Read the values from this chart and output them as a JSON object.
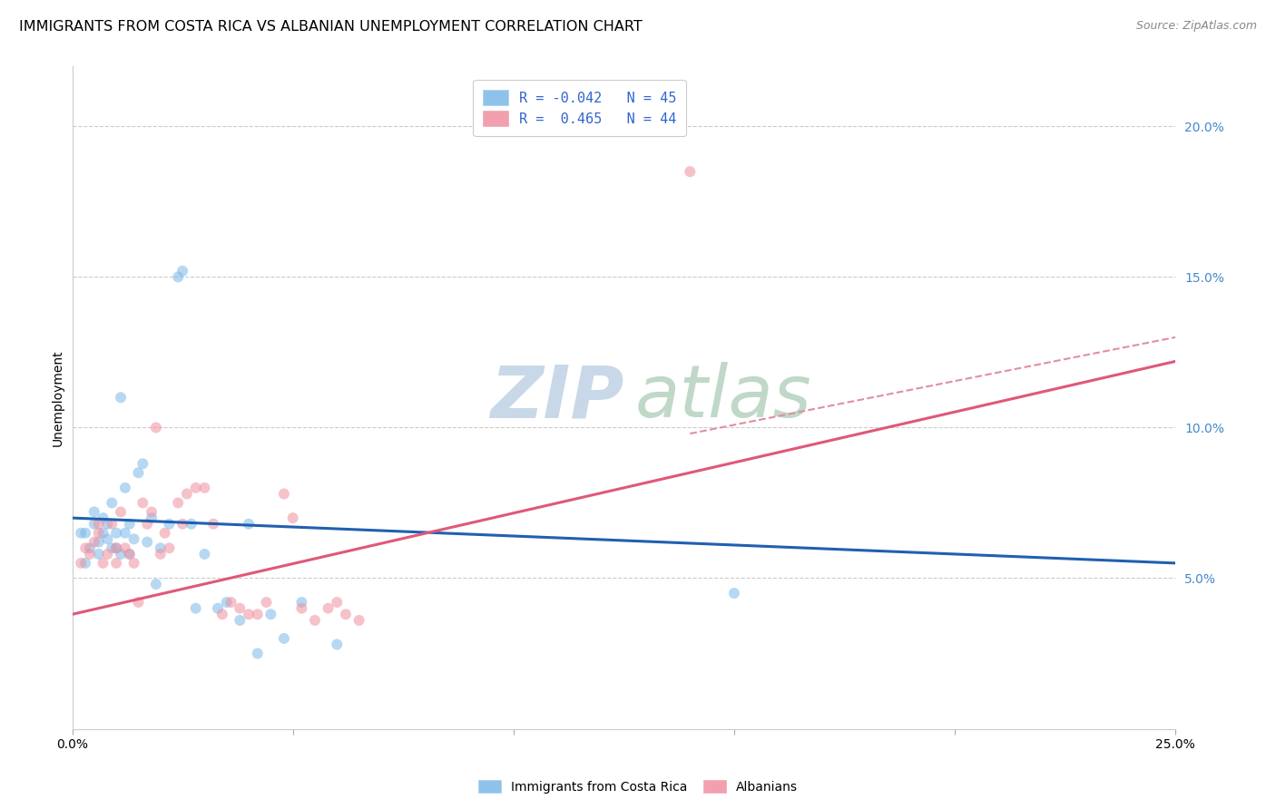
{
  "title": "IMMIGRANTS FROM COSTA RICA VS ALBANIAN UNEMPLOYMENT CORRELATION CHART",
  "source": "Source: ZipAtlas.com",
  "ylabel": "Unemployment",
  "xlim": [
    0.0,
    0.25
  ],
  "ylim": [
    0.0,
    0.22
  ],
  "yticks": [
    0.05,
    0.1,
    0.15,
    0.2
  ],
  "ytick_labels": [
    "5.0%",
    "10.0%",
    "15.0%",
    "20.0%"
  ],
  "xticks": [
    0.0,
    0.05,
    0.1,
    0.15,
    0.2,
    0.25
  ],
  "xtick_labels": [
    "0.0%",
    "",
    "",
    "",
    "",
    "25.0%"
  ],
  "legend_label_blue": "R = -0.042   N = 45",
  "legend_label_pink": "R =  0.465   N = 44",
  "blue_scatter_x": [
    0.002,
    0.003,
    0.004,
    0.005,
    0.005,
    0.006,
    0.006,
    0.007,
    0.007,
    0.008,
    0.008,
    0.009,
    0.009,
    0.01,
    0.01,
    0.011,
    0.011,
    0.012,
    0.012,
    0.013,
    0.013,
    0.014,
    0.015,
    0.016,
    0.017,
    0.018,
    0.019,
    0.02,
    0.022,
    0.024,
    0.025,
    0.027,
    0.028,
    0.03,
    0.033,
    0.035,
    0.038,
    0.04,
    0.042,
    0.045,
    0.048,
    0.052,
    0.06,
    0.15,
    0.003
  ],
  "blue_scatter_y": [
    0.065,
    0.065,
    0.06,
    0.068,
    0.072,
    0.062,
    0.058,
    0.065,
    0.07,
    0.063,
    0.068,
    0.06,
    0.075,
    0.06,
    0.065,
    0.058,
    0.11,
    0.065,
    0.08,
    0.068,
    0.058,
    0.063,
    0.085,
    0.088,
    0.062,
    0.07,
    0.048,
    0.06,
    0.068,
    0.15,
    0.152,
    0.068,
    0.04,
    0.058,
    0.04,
    0.042,
    0.036,
    0.068,
    0.025,
    0.038,
    0.03,
    0.042,
    0.028,
    0.045,
    0.055
  ],
  "pink_scatter_x": [
    0.002,
    0.003,
    0.004,
    0.005,
    0.006,
    0.006,
    0.007,
    0.008,
    0.009,
    0.01,
    0.01,
    0.011,
    0.012,
    0.013,
    0.014,
    0.015,
    0.016,
    0.017,
    0.018,
    0.019,
    0.02,
    0.021,
    0.022,
    0.024,
    0.025,
    0.026,
    0.028,
    0.03,
    0.032,
    0.034,
    0.036,
    0.038,
    0.04,
    0.042,
    0.044,
    0.048,
    0.05,
    0.052,
    0.055,
    0.058,
    0.06,
    0.062,
    0.065,
    0.14
  ],
  "pink_scatter_y": [
    0.055,
    0.06,
    0.058,
    0.062,
    0.065,
    0.068,
    0.055,
    0.058,
    0.068,
    0.06,
    0.055,
    0.072,
    0.06,
    0.058,
    0.055,
    0.042,
    0.075,
    0.068,
    0.072,
    0.1,
    0.058,
    0.065,
    0.06,
    0.075,
    0.068,
    0.078,
    0.08,
    0.08,
    0.068,
    0.038,
    0.042,
    0.04,
    0.038,
    0.038,
    0.042,
    0.078,
    0.07,
    0.04,
    0.036,
    0.04,
    0.042,
    0.038,
    0.036,
    0.185
  ],
  "blue_line_x": [
    0.0,
    0.25
  ],
  "blue_line_y": [
    0.07,
    0.055
  ],
  "pink_line_x": [
    0.0,
    0.25
  ],
  "pink_line_y": [
    0.038,
    0.122
  ],
  "dashed_line_x": [
    0.14,
    0.25
  ],
  "dashed_line_y": [
    0.098,
    0.13
  ],
  "background_color": "#ffffff",
  "scatter_alpha": 0.55,
  "scatter_size": 75,
  "blue_color": "#7ab8e8",
  "pink_color": "#f090a0",
  "blue_line_color": "#2060b0",
  "pink_line_color": "#e05878",
  "dashed_line_color": "#e090a0",
  "grid_color": "#cccccc",
  "ytick_color": "#4488cc",
  "title_fontsize": 11.5,
  "axis_label_fontsize": 10,
  "tick_fontsize": 10,
  "legend_fontsize": 11,
  "source_fontsize": 9
}
